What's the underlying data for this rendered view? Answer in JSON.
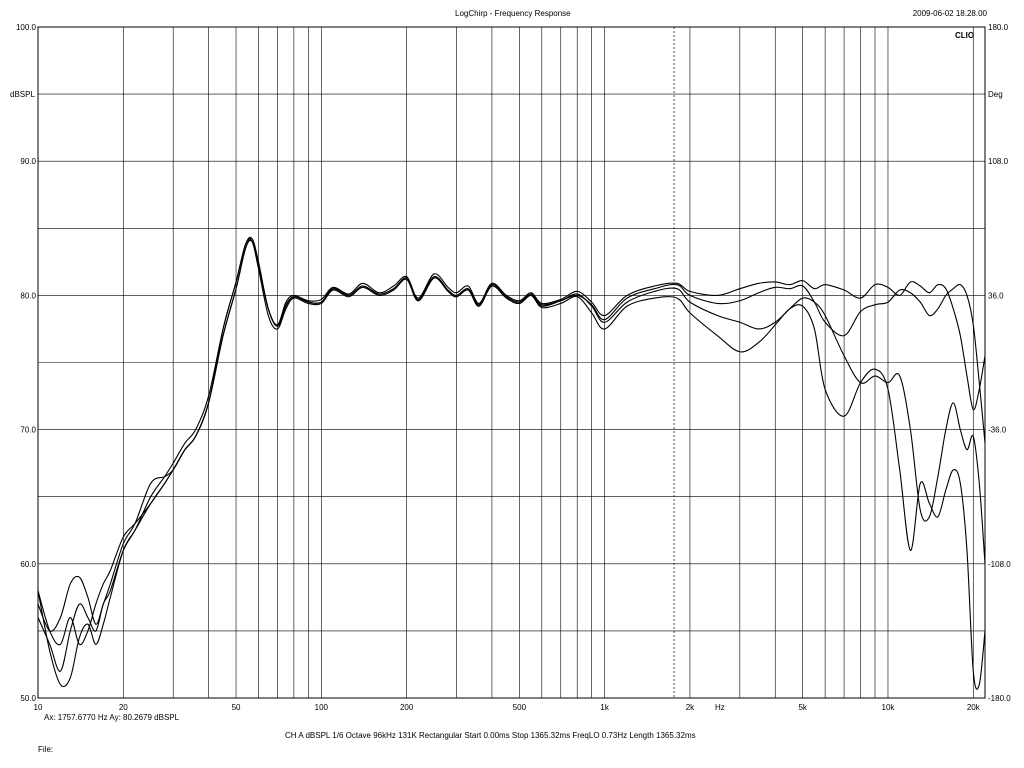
{
  "header": {
    "title": "LogChirp - Frequency Response",
    "timestamp": "2009-06-02 18.28.00",
    "brand": "CLIO"
  },
  "status": {
    "cursor_readout": "Ax: 1757.6770 Hz  Ay: 80.2679 dBSPL",
    "settings_line": "CH A   dBSPL   1/6 Octave   96kHz   131K   Rectangular   Start 0.00ms   Stop 1365.32ms   FreqLO 0.73Hz   Length 1365.32ms",
    "file_label": "File:"
  },
  "chart_data": {
    "type": "line",
    "title": "LogChirp - Frequency Response",
    "xlabel": "Hz",
    "ylabel": "dBSPL",
    "y2label": "Deg",
    "xscale": "log",
    "xlim": [
      10,
      22000
    ],
    "ylim": [
      50,
      100
    ],
    "y2lim": [
      -180,
      180
    ],
    "grid": true,
    "cursor_x": 1757.677,
    "x_tick_labels": [
      {
        "value": 10,
        "label": "10"
      },
      {
        "value": 20,
        "label": "20"
      },
      {
        "value": 50,
        "label": "50"
      },
      {
        "value": 100,
        "label": "100"
      },
      {
        "value": 200,
        "label": "200"
      },
      {
        "value": 500,
        "label": "500"
      },
      {
        "value": 1000,
        "label": "1k"
      },
      {
        "value": 2000,
        "label": "2k"
      },
      {
        "value": 5000,
        "label": "5k"
      },
      {
        "value": 10000,
        "label": "10k"
      },
      {
        "value": 20000,
        "label": "20k"
      }
    ],
    "y_tick_labels": [
      {
        "value": 100,
        "label": "100.0"
      },
      {
        "value": 90,
        "label": "90.0"
      },
      {
        "value": 80,
        "label": "80.0"
      },
      {
        "value": 70,
        "label": "70.0"
      },
      {
        "value": 60,
        "label": "60.0"
      },
      {
        "value": 50,
        "label": "50.0"
      }
    ],
    "y2_tick_labels": [
      {
        "value": 180,
        "label": "180.0"
      },
      {
        "value": 108,
        "label": "108.0"
      },
      {
        "value": 36,
        "label": "36.0"
      },
      {
        "value": -36,
        "label": "-36.0"
      },
      {
        "value": -108,
        "label": "-108.0"
      },
      {
        "value": -180,
        "label": "-180.0"
      }
    ],
    "series": [
      {
        "x": [
          10,
          11,
          12,
          13,
          14,
          15,
          16,
          17,
          18,
          20,
          22,
          25,
          28,
          30,
          33,
          36,
          40,
          45,
          50,
          54,
          57,
          60,
          65,
          70,
          75,
          80,
          90,
          100,
          110,
          125,
          140,
          160,
          180,
          200,
          220,
          250,
          280,
          300,
          330,
          360,
          400,
          450,
          500,
          550,
          600,
          700,
          800,
          900,
          1000,
          1200,
          1500,
          1800,
          2000,
          2500,
          3000,
          3500,
          4000,
          4500,
          5000,
          5500,
          6000,
          7000,
          8000,
          9000,
          10000,
          11000,
          12000,
          13000,
          14000,
          15000,
          16000,
          17000,
          18000,
          19000,
          20000,
          21000,
          22000
        ],
        "values": [
          58,
          55,
          54,
          56,
          54,
          55,
          57,
          58.5,
          59.5,
          62,
          63,
          64.5,
          66,
          67,
          68.5,
          69.5,
          72,
          77,
          80.5,
          83.5,
          84.2,
          82.5,
          79,
          77.8,
          79.5,
          80,
          79.6,
          79.7,
          80.6,
          80.1,
          80.9,
          80.2,
          80.7,
          81.4,
          79.8,
          81.6,
          80.6,
          80.2,
          80.7,
          79.4,
          80.9,
          80,
          79.6,
          80.2,
          79.4,
          79.7,
          80.3,
          79.5,
          78.5,
          80,
          80.7,
          80.9,
          80.3,
          80,
          80.5,
          80.9,
          81,
          80.8,
          81.1,
          80.5,
          80.8,
          80.4,
          79.8,
          80.8,
          80.6,
          80,
          81,
          80.7,
          80.2,
          80.8,
          80.5,
          79,
          77,
          74,
          71.5,
          73,
          75.5
        ]
      },
      {
        "x": [
          10,
          11,
          12,
          13,
          14,
          15,
          16,
          17,
          18,
          20,
          22,
          25,
          28,
          30,
          33,
          36,
          40,
          45,
          50,
          54,
          57,
          60,
          65,
          70,
          75,
          80,
          90,
          100,
          110,
          125,
          140,
          160,
          180,
          200,
          220,
          250,
          280,
          300,
          330,
          360,
          400,
          450,
          500,
          550,
          600,
          700,
          800,
          900,
          1000,
          1200,
          1500,
          1800,
          2000,
          2500,
          3000,
          3500,
          4000,
          4500,
          5000,
          5500,
          6000,
          7000,
          8000,
          9000,
          10000,
          11000,
          12000,
          13000,
          14000,
          15000,
          16000,
          17000,
          18000,
          19000,
          20000,
          21000,
          22000
        ],
        "values": [
          56,
          54,
          52,
          55,
          57,
          56,
          55,
          57,
          58,
          61,
          62.5,
          65,
          66.5,
          67.5,
          69,
          70,
          72.5,
          77.5,
          81,
          83.8,
          84,
          82,
          78.5,
          77.5,
          79,
          79.8,
          79.4,
          79.4,
          80.4,
          79.9,
          80.6,
          80,
          80.4,
          81.2,
          79.6,
          81.3,
          80.3,
          79.9,
          80.4,
          79.2,
          80.7,
          79.8,
          79.4,
          80,
          79.2,
          79.6,
          80,
          79.3,
          78.2,
          79.8,
          80.5,
          80.8,
          80,
          79.4,
          79.6,
          80.2,
          80.6,
          80.5,
          80.7,
          79.5,
          78,
          77,
          78.8,
          79.3,
          79.5,
          80.4,
          80.2,
          79.5,
          78.5,
          79,
          80,
          80.5,
          80.8,
          80,
          77.8,
          73.5,
          69
        ]
      },
      {
        "x": [
          10,
          11,
          12,
          13,
          14,
          15,
          16,
          17,
          18,
          20,
          22,
          25,
          28,
          30,
          33,
          36,
          40,
          45,
          50,
          54,
          57,
          60,
          65,
          70,
          75,
          80,
          90,
          100,
          110,
          125,
          140,
          160,
          180,
          200,
          220,
          250,
          280,
          300,
          330,
          360,
          400,
          450,
          500,
          550,
          600,
          700,
          800,
          900,
          1000,
          1200,
          1500,
          1800,
          2000,
          2500,
          3000,
          3500,
          4000,
          4500,
          5000,
          5500,
          6000,
          7000,
          8000,
          9000,
          10000,
          11000,
          12000,
          13000,
          14000,
          15000,
          16000,
          17000,
          18000,
          19000,
          20000,
          21000,
          22000
        ],
        "values": [
          57,
          55,
          56,
          58.5,
          59,
          57.5,
          55.5,
          57,
          58.5,
          61.5,
          63,
          66,
          66.5,
          67,
          68.5,
          69.5,
          72,
          77,
          80.5,
          83.5,
          84,
          82.2,
          79,
          77.7,
          79.2,
          79.9,
          79.5,
          79.5,
          80.5,
          80,
          80.7,
          80.1,
          80.5,
          81.3,
          79.7,
          81.4,
          80.4,
          80,
          80.5,
          79.3,
          80.8,
          79.9,
          79.5,
          80.1,
          79.3,
          79.6,
          80.1,
          79.2,
          78,
          79.5,
          80.3,
          80.5,
          79.5,
          78.5,
          78,
          77.5,
          78,
          79,
          79.8,
          79.5,
          78.5,
          75.5,
          73.5,
          74,
          73.5,
          74,
          70,
          64,
          63.5,
          66.5,
          70,
          72,
          70,
          68.5,
          69.5,
          66,
          60
        ]
      },
      {
        "x": [
          10,
          11,
          12,
          13,
          14,
          15,
          16,
          17,
          18,
          20,
          22,
          25,
          28,
          30,
          33,
          36,
          40,
          45,
          50,
          54,
          57,
          60,
          65,
          70,
          75,
          80,
          90,
          100,
          110,
          125,
          140,
          160,
          180,
          200,
          220,
          250,
          280,
          300,
          330,
          360,
          400,
          450,
          500,
          550,
          600,
          700,
          800,
          900,
          1000,
          1200,
          1500,
          1800,
          2000,
          2500,
          3000,
          3500,
          4000,
          4500,
          5000,
          5500,
          6000,
          7000,
          8000,
          9000,
          10000,
          11000,
          12000,
          13000,
          14000,
          15000,
          16000,
          17000,
          18000,
          19000,
          20000,
          21000,
          22000
        ],
        "values": [
          58,
          53.5,
          51,
          51.5,
          54.5,
          55.5,
          54,
          55.5,
          57.5,
          61,
          62.5,
          64.5,
          66,
          67,
          68.5,
          69.5,
          72,
          77.5,
          81,
          83.8,
          84.2,
          82.3,
          79,
          77.8,
          79.3,
          79.9,
          79.5,
          79.5,
          80.5,
          80,
          80.7,
          80.1,
          80.5,
          81.2,
          79.6,
          81.3,
          80.3,
          79.9,
          80.4,
          79.2,
          80.7,
          79.8,
          79.4,
          80,
          79.1,
          79.4,
          79.9,
          78.7,
          77.5,
          79.2,
          79.8,
          79.8,
          78.7,
          77,
          75.8,
          76.5,
          77.8,
          79,
          79.2,
          77.5,
          73,
          71,
          73.5,
          74.5,
          73,
          67,
          61,
          66,
          64.5,
          63.5,
          65.5,
          67,
          66,
          61,
          52,
          51,
          55
        ]
      }
    ]
  }
}
